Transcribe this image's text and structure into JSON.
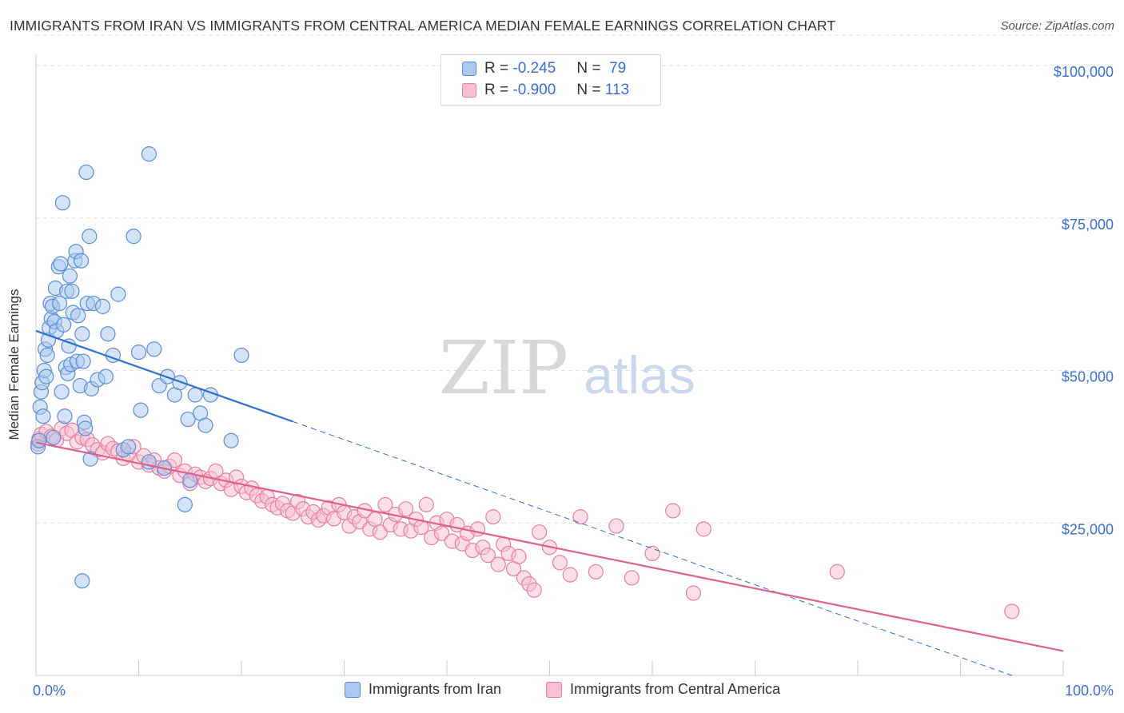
{
  "title": "IMMIGRANTS FROM IRAN VS IMMIGRANTS FROM CENTRAL AMERICA MEDIAN FEMALE EARNINGS CORRELATION CHART",
  "source": "Source: ZipAtlas.com",
  "watermark": {
    "zip": "ZIP",
    "atlas": "atlas"
  },
  "legend_top": {
    "rows": [
      {
        "r_label": "R =",
        "r_value": "-0.245",
        "n_label": "N =",
        "n_value": "79"
      },
      {
        "r_label": "R =",
        "r_value": "-0.900",
        "n_label": "N =",
        "n_value": "113"
      }
    ]
  },
  "legend_bottom": [
    "Immigrants from Iran",
    "Immigrants from Central America"
  ],
  "colors": {
    "iran_fill": "#aac8f0",
    "iran_stroke": "#5a8fd6",
    "iran_line": "#2f6fd0",
    "ca_fill": "#f8bfd0",
    "ca_stroke": "#e87fa0",
    "ca_line": "#e0608e",
    "tick_label": "#3a6fd8",
    "grid": "#e2e2e2"
  },
  "chart_data": {
    "type": "scatter",
    "title": "IMMIGRANTS FROM IRAN VS IMMIGRANTS FROM CENTRAL AMERICA MEDIAN FEMALE EARNINGS CORRELATION CHART",
    "xlabel": "",
    "ylabel": "Median Female Earnings",
    "xlim": [
      0,
      100
    ],
    "ylim": [
      0,
      105000
    ],
    "x_tick_labels": [
      "0.0%",
      "100.0%"
    ],
    "y_ticks": [
      25000,
      50000,
      75000,
      100000
    ],
    "y_tick_labels": [
      "$25,000",
      "$50,000",
      "$75,000",
      "$100,000"
    ],
    "grid": true,
    "legend_position": "bottom",
    "series": [
      {
        "name": "Immigrants from Iran",
        "R": -0.245,
        "N": 79,
        "trend": {
          "x0": 0,
          "y0": 56500,
          "x_solid_end": 25,
          "x1": 95,
          "y1": 0
        },
        "points": [
          [
            0.2,
            37500
          ],
          [
            0.3,
            38500
          ],
          [
            0.4,
            44000
          ],
          [
            0.5,
            46500
          ],
          [
            0.6,
            48000
          ],
          [
            0.7,
            42500
          ],
          [
            0.8,
            50000
          ],
          [
            0.9,
            53500
          ],
          [
            1.0,
            49000
          ],
          [
            1.1,
            52500
          ],
          [
            1.2,
            55000
          ],
          [
            1.3,
            57000
          ],
          [
            1.4,
            61000
          ],
          [
            1.5,
            58500
          ],
          [
            1.6,
            60500
          ],
          [
            1.7,
            39000
          ],
          [
            1.8,
            58000
          ],
          [
            1.9,
            63500
          ],
          [
            2.0,
            56500
          ],
          [
            2.2,
            67000
          ],
          [
            2.3,
            61000
          ],
          [
            2.4,
            67500
          ],
          [
            2.5,
            46500
          ],
          [
            2.6,
            77500
          ],
          [
            2.7,
            57500
          ],
          [
            2.8,
            42500
          ],
          [
            2.9,
            50500
          ],
          [
            3.0,
            63000
          ],
          [
            3.1,
            49500
          ],
          [
            3.2,
            54000
          ],
          [
            3.3,
            65500
          ],
          [
            3.4,
            51000
          ],
          [
            3.5,
            63000
          ],
          [
            3.6,
            59500
          ],
          [
            3.8,
            68000
          ],
          [
            3.9,
            69500
          ],
          [
            4.0,
            51500
          ],
          [
            4.1,
            59000
          ],
          [
            4.3,
            47500
          ],
          [
            4.4,
            68000
          ],
          [
            4.5,
            56000
          ],
          [
            4.6,
            51500
          ],
          [
            4.7,
            41500
          ],
          [
            4.8,
            40500
          ],
          [
            4.9,
            82500
          ],
          [
            5.0,
            61000
          ],
          [
            5.2,
            72000
          ],
          [
            5.3,
            35500
          ],
          [
            5.4,
            47000
          ],
          [
            5.6,
            61000
          ],
          [
            6.0,
            48500
          ],
          [
            6.5,
            60500
          ],
          [
            6.8,
            49000
          ],
          [
            7.0,
            56000
          ],
          [
            7.5,
            52500
          ],
          [
            8.0,
            62500
          ],
          [
            8.5,
            37000
          ],
          [
            9.0,
            37500
          ],
          [
            9.5,
            72000
          ],
          [
            10.0,
            53000
          ],
          [
            10.2,
            43500
          ],
          [
            11.0,
            35000
          ],
          [
            11.5,
            53500
          ],
          [
            11.0,
            85500
          ],
          [
            12.0,
            47500
          ],
          [
            12.5,
            34000
          ],
          [
            12.8,
            49000
          ],
          [
            13.5,
            46000
          ],
          [
            14.0,
            48000
          ],
          [
            14.5,
            28000
          ],
          [
            14.8,
            42000
          ],
          [
            15.0,
            32000
          ],
          [
            15.5,
            46000
          ],
          [
            16.0,
            43000
          ],
          [
            16.5,
            41000
          ],
          [
            17.0,
            46000
          ],
          [
            19.0,
            38500
          ],
          [
            20.0,
            52500
          ],
          [
            4.5,
            15500
          ]
        ]
      },
      {
        "name": "Immigrants from Central America",
        "R": -0.9,
        "N": 113,
        "trend": {
          "x0": 0,
          "y0": 38200,
          "x1": 100,
          "y1": 4000
        },
        "points": [
          [
            0.2,
            38000
          ],
          [
            0.3,
            38800
          ],
          [
            0.5,
            39500
          ],
          [
            1.0,
            40000
          ],
          [
            1.5,
            39200
          ],
          [
            2.0,
            38600
          ],
          [
            2.5,
            40500
          ],
          [
            3.0,
            39700
          ],
          [
            3.5,
            40200
          ],
          [
            4.0,
            38300
          ],
          [
            4.5,
            39000
          ],
          [
            5.0,
            38700
          ],
          [
            5.5,
            37800
          ],
          [
            6.0,
            37000
          ],
          [
            6.5,
            36500
          ],
          [
            7.0,
            38000
          ],
          [
            7.5,
            37200
          ],
          [
            8.0,
            36800
          ],
          [
            8.5,
            35600
          ],
          [
            9.0,
            36200
          ],
          [
            9.5,
            37500
          ],
          [
            10.0,
            35000
          ],
          [
            10.5,
            36000
          ],
          [
            11.0,
            34500
          ],
          [
            11.5,
            35300
          ],
          [
            12.0,
            34000
          ],
          [
            12.5,
            33500
          ],
          [
            13.0,
            34300
          ],
          [
            13.5,
            35300
          ],
          [
            14.0,
            32800
          ],
          [
            14.5,
            33500
          ],
          [
            15.0,
            31500
          ],
          [
            15.5,
            33000
          ],
          [
            16.0,
            32500
          ],
          [
            16.5,
            31800
          ],
          [
            17.0,
            32300
          ],
          [
            17.5,
            33500
          ],
          [
            18.0,
            31500
          ],
          [
            18.5,
            32000
          ],
          [
            19.0,
            30500
          ],
          [
            19.5,
            32500
          ],
          [
            20.0,
            31000
          ],
          [
            20.5,
            30000
          ],
          [
            21.0,
            30700
          ],
          [
            21.5,
            29500
          ],
          [
            22.0,
            28600
          ],
          [
            22.5,
            29300
          ],
          [
            23.0,
            28000
          ],
          [
            23.5,
            27500
          ],
          [
            24.0,
            28200
          ],
          [
            24.5,
            27000
          ],
          [
            25.0,
            26600
          ],
          [
            25.5,
            28500
          ],
          [
            26.0,
            27300
          ],
          [
            26.5,
            26000
          ],
          [
            27.0,
            26800
          ],
          [
            27.5,
            25500
          ],
          [
            28.0,
            26200
          ],
          [
            28.5,
            27500
          ],
          [
            29.0,
            25700
          ],
          [
            29.5,
            28000
          ],
          [
            30.0,
            26700
          ],
          [
            30.5,
            24500
          ],
          [
            31.0,
            26000
          ],
          [
            31.5,
            25200
          ],
          [
            32.0,
            27000
          ],
          [
            32.5,
            24000
          ],
          [
            33.0,
            25600
          ],
          [
            33.5,
            23500
          ],
          [
            34.0,
            28000
          ],
          [
            34.5,
            24700
          ],
          [
            35.0,
            26400
          ],
          [
            35.5,
            24000
          ],
          [
            36.0,
            27300
          ],
          [
            36.5,
            23700
          ],
          [
            37.0,
            25600
          ],
          [
            37.5,
            24300
          ],
          [
            38.0,
            28000
          ],
          [
            38.5,
            22600
          ],
          [
            39.0,
            25000
          ],
          [
            39.5,
            23300
          ],
          [
            40.0,
            25600
          ],
          [
            40.5,
            22000
          ],
          [
            41.0,
            24700
          ],
          [
            41.5,
            21600
          ],
          [
            42.0,
            23300
          ],
          [
            42.5,
            20500
          ],
          [
            43.0,
            24000
          ],
          [
            43.5,
            21000
          ],
          [
            44.0,
            19700
          ],
          [
            44.5,
            26000
          ],
          [
            45.0,
            18200
          ],
          [
            45.5,
            21500
          ],
          [
            46.0,
            20000
          ],
          [
            46.5,
            17500
          ],
          [
            47.0,
            19500
          ],
          [
            47.5,
            16000
          ],
          [
            48.0,
            15000
          ],
          [
            48.5,
            14000
          ],
          [
            49.0,
            23500
          ],
          [
            50.0,
            21000
          ],
          [
            51.0,
            18500
          ],
          [
            52.0,
            16500
          ],
          [
            53.0,
            26000
          ],
          [
            54.5,
            17000
          ],
          [
            56.5,
            24500
          ],
          [
            58.0,
            16000
          ],
          [
            60.0,
            20000
          ],
          [
            62.0,
            27000
          ],
          [
            64.0,
            13500
          ],
          [
            65.0,
            24000
          ],
          [
            78.0,
            17000
          ],
          [
            95.0,
            10500
          ]
        ]
      }
    ]
  }
}
